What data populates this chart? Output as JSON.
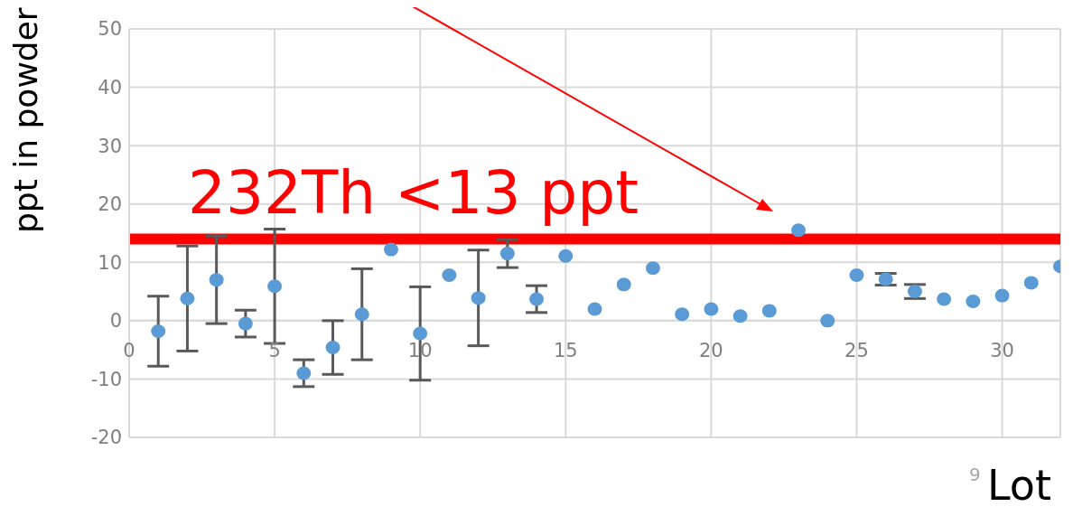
{
  "chart_data": {
    "type": "scatter",
    "xlabel": "Lot",
    "ylabel": "ppt in powder",
    "x": [
      1,
      2,
      3,
      4,
      5,
      6,
      7,
      8,
      9,
      10,
      11,
      12,
      13,
      14,
      15,
      16,
      17,
      18,
      19,
      20,
      21,
      22,
      23,
      24,
      25,
      26,
      27,
      28,
      29,
      30,
      31,
      32
    ],
    "series": [
      {
        "color": "#5b9bd5",
        "values": [
          -1.8,
          3.8,
          7.0,
          -0.5,
          5.9,
          -9.0,
          -4.6,
          1.1,
          12.2,
          -2.2,
          7.8,
          3.9,
          11.5,
          3.7,
          11.1,
          2.0,
          6.2,
          9.0,
          1.1,
          2.0,
          0.8,
          1.7,
          15.5,
          0.0,
          7.8,
          7.1,
          5.0,
          3.7,
          3.3,
          4.3,
          6.5,
          9.3
        ],
        "errors": [
          6,
          9,
          7.5,
          2.3,
          9.8,
          2.3,
          4.6,
          7.8,
          null,
          8,
          null,
          8.2,
          2.4,
          2.3,
          null,
          null,
          null,
          null,
          null,
          null,
          null,
          null,
          null,
          null,
          null,
          1,
          1.2,
          null,
          null,
          null,
          null,
          null
        ]
      }
    ],
    "xlim": [
      0,
      32
    ],
    "xticks": [
      0,
      5,
      10,
      15,
      20,
      25,
      30
    ],
    "ylim": [
      -20,
      50
    ],
    "yticks": [
      -20,
      -10,
      0,
      10,
      20,
      30,
      40,
      50
    ],
    "grid": true,
    "marker": "circle",
    "ref_lines": [
      {
        "axis": "y",
        "value": 14,
        "label": "232Th <13 ppt",
        "color": "#ff0000"
      }
    ],
    "annotations": [
      "9"
    ]
  }
}
